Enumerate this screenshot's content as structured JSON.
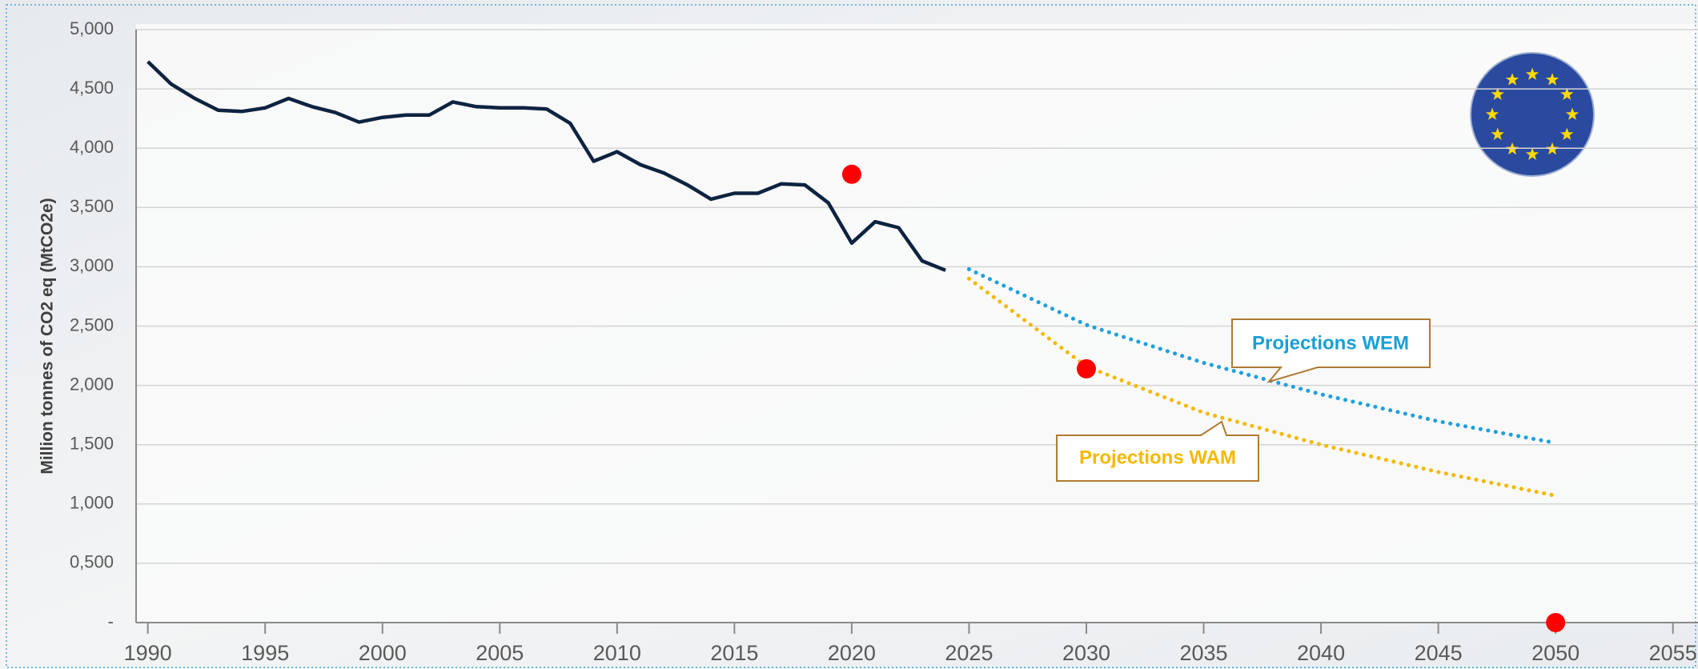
{
  "chart_data": {
    "type": "line",
    "y_label": "Million tonnes of CO2 eq (MtCO2e)",
    "xlim": [
      1989.5,
      2056
    ],
    "xticks": [
      1990,
      1995,
      2000,
      2005,
      2010,
      2015,
      2020,
      2025,
      2030,
      2035,
      2040,
      2045,
      2050,
      2055
    ],
    "ylim": [
      0,
      5000
    ],
    "yticks": [
      {
        "value": 0,
        "label": "-"
      },
      {
        "value": 500,
        "label": "0,500"
      },
      {
        "value": 1000,
        "label": "1,000"
      },
      {
        "value": 1500,
        "label": "1,500"
      },
      {
        "value": 2000,
        "label": "2,000"
      },
      {
        "value": 2500,
        "label": "2,500"
      },
      {
        "value": 3000,
        "label": "3,000"
      },
      {
        "value": 3500,
        "label": "3,500"
      },
      {
        "value": 4000,
        "label": "4,000"
      },
      {
        "value": 4500,
        "label": "4,500"
      },
      {
        "value": 5000,
        "label": "5,000"
      }
    ],
    "grid": true,
    "series": [
      {
        "color": "#0d2340",
        "style": "solid",
        "x": [
          1990,
          1991,
          1992,
          1993,
          1994,
          1995,
          1996,
          1997,
          1998,
          1999,
          2000,
          2001,
          2002,
          2003,
          2004,
          2005,
          2006,
          2007,
          2008,
          2009,
          2010,
          2011,
          2012,
          2013,
          2014,
          2015,
          2016,
          2017,
          2018,
          2019,
          2020,
          2021,
          2022,
          2023,
          2024
        ],
        "values": [
          4730,
          4540,
          4420,
          4320,
          4310,
          4340,
          4420,
          4350,
          4300,
          4220,
          4260,
          4280,
          4280,
          4390,
          4350,
          4340,
          4340,
          4330,
          4210,
          3890,
          3970,
          3860,
          3790,
          3690,
          3570,
          3620,
          3620,
          3700,
          3690,
          3540,
          3200,
          3380,
          3330,
          3050,
          2970
        ]
      },
      {
        "name": "Projections WEM",
        "color": "#1ea0dc",
        "style": "dotted",
        "x": [
          2025,
          2030,
          2035,
          2040,
          2045,
          2050
        ],
        "values": [
          2980,
          2510,
          2190,
          1925,
          1697,
          1515
        ]
      },
      {
        "name": "Projections WAM",
        "color": "#f5b800",
        "style": "dotted",
        "x": [
          2025,
          2030,
          2035,
          2040,
          2045,
          2050
        ],
        "values": [
          2900,
          2160,
          1770,
          1500,
          1270,
          1070
        ]
      },
      {
        "color": "#ff0000",
        "style": "points",
        "x": [
          2020,
          2030,
          2050
        ],
        "values": [
          3780,
          2140,
          0
        ]
      }
    ]
  }
}
